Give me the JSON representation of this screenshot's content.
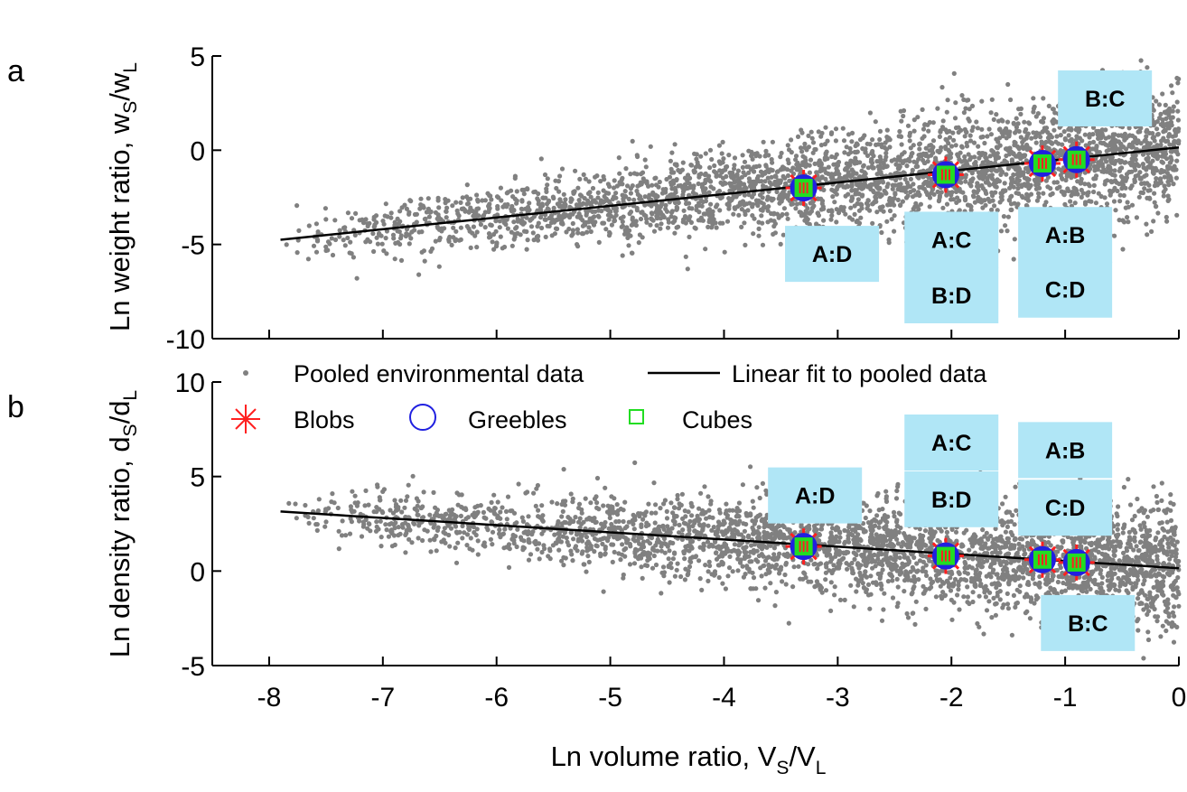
{
  "figure": {
    "panel_a_letter": "a",
    "panel_b_letter": "b"
  },
  "legend": {
    "pooled": "Pooled environmental data",
    "fit": "Linear fit to pooled data",
    "blobs": "Blobs",
    "greebles": "Greebles",
    "cubes": "Cubes"
  },
  "colors": {
    "scatter": "#808080",
    "fit": "#000000",
    "blobs": "#ff2020",
    "greebles": "#2020e0",
    "cubes": "#22dd22",
    "label_box": "#b0e6f6"
  },
  "chart_data": [
    {
      "type": "scatter",
      "panel": "a",
      "xlim": [
        -8.5,
        0
      ],
      "ylim": [
        -10,
        5
      ],
      "xticks": [
        "-8",
        "-7",
        "-6",
        "-5",
        "-4",
        "-3",
        "-2",
        "-1",
        "0"
      ],
      "yticks": [
        "-10",
        "-5",
        "0",
        "5"
      ],
      "ylabel": {
        "main": "Ln weight ratio, w",
        "sub1": "S",
        "mid": "/w",
        "sub2": "L"
      },
      "fit_line": {
        "x": [
          -7.9,
          0
        ],
        "y": [
          -4.75,
          0.15
        ]
      },
      "points": [
        {
          "x": -3.3,
          "y": -2.0
        },
        {
          "x": -2.05,
          "y": -1.3
        },
        {
          "x": -1.2,
          "y": -0.7
        },
        {
          "x": -0.9,
          "y": -0.5
        }
      ],
      "labels": [
        {
          "text": "A:D",
          "x": -3.05,
          "y": -5.5
        },
        {
          "text": "A:C",
          "x": -2.0,
          "y": -4.75
        },
        {
          "text": "B:D",
          "x": -2.0,
          "y": -7.7
        },
        {
          "text": "A:B",
          "x": -1.0,
          "y": -4.5
        },
        {
          "text": "C:D",
          "x": -1.0,
          "y": -7.4
        },
        {
          "text": "B:C",
          "x": -0.65,
          "y": 2.75
        }
      ]
    },
    {
      "type": "scatter",
      "panel": "b",
      "xlim": [
        -8.5,
        0
      ],
      "ylim": [
        -5,
        10
      ],
      "xticks": [
        "-8",
        "-7",
        "-6",
        "-5",
        "-4",
        "-3",
        "-2",
        "-1",
        "0"
      ],
      "yticks": [
        "-5",
        "0",
        "5",
        "10"
      ],
      "ylabel": {
        "main": "Ln density ratio, d",
        "sub1": "S",
        "mid": "/d",
        "sub2": "L"
      },
      "xlabel": {
        "main": "Ln volume ratio, V",
        "sub1": "S",
        "mid": "/V",
        "sub2": "L"
      },
      "fit_line": {
        "x": [
          -7.9,
          0
        ],
        "y": [
          3.15,
          0.15
        ]
      },
      "points": [
        {
          "x": -3.3,
          "y": 1.3
        },
        {
          "x": -2.05,
          "y": 0.8
        },
        {
          "x": -1.2,
          "y": 0.6
        },
        {
          "x": -0.9,
          "y": 0.45
        }
      ],
      "labels": [
        {
          "text": "A:D",
          "x": -3.2,
          "y": 4.0
        },
        {
          "text": "A:C",
          "x": -2.0,
          "y": 6.8
        },
        {
          "text": "B:D",
          "x": -2.0,
          "y": 3.8
        },
        {
          "text": "A:B",
          "x": -1.0,
          "y": 6.4
        },
        {
          "text": "C:D",
          "x": -1.0,
          "y": 3.35
        },
        {
          "text": "B:C",
          "x": -0.8,
          "y": -2.75
        }
      ]
    }
  ]
}
